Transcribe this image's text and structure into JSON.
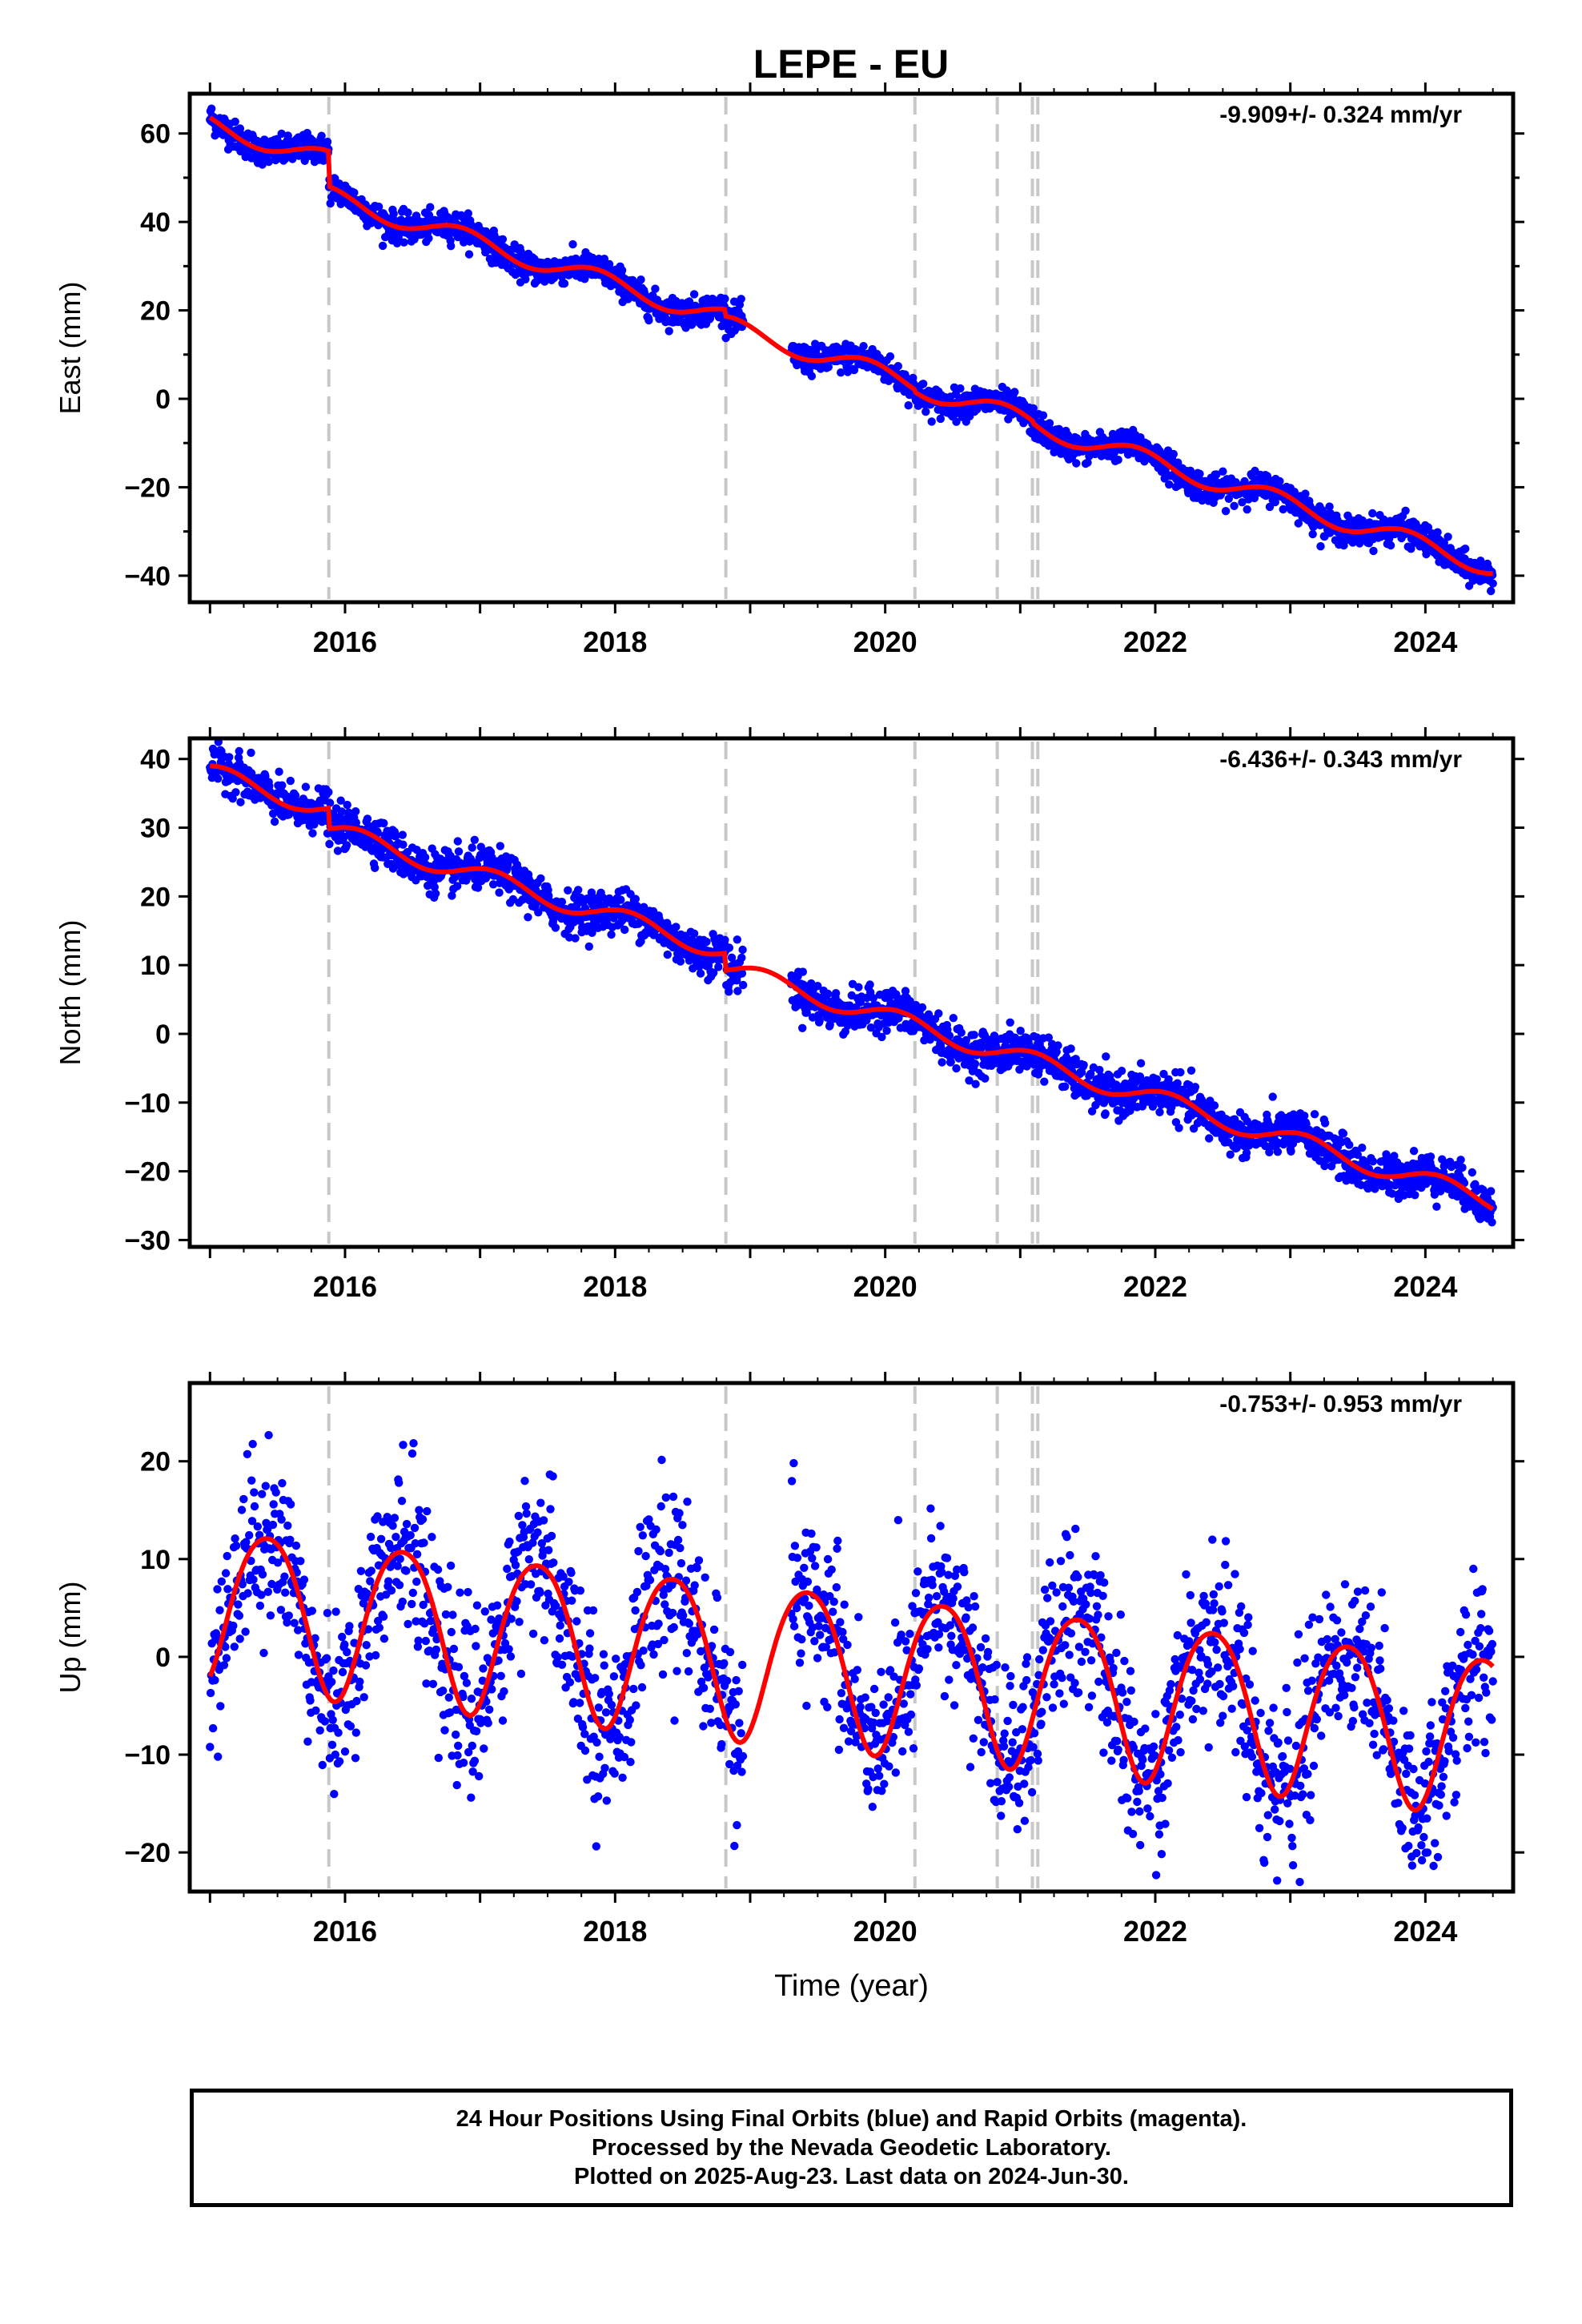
{
  "title": "LEPE - EU",
  "colors": {
    "points": "#0000ff",
    "fit": "#ff0000",
    "steps": "#c8c8c8",
    "axis": "#000000"
  },
  "chart_data": [
    {
      "type": "scatter",
      "panel": "east",
      "ylabel": "East (mm)",
      "xlabel": "",
      "xlim": [
        2014.85,
        2024.65
      ],
      "ylim": [
        -46,
        69
      ],
      "yticks": [
        -40,
        -20,
        0,
        20,
        40,
        60
      ],
      "xticks": [
        2016,
        2018,
        2020,
        2022,
        2024
      ],
      "velocity": "-9.909+/- 0.324 mm/yr",
      "velocity_mm_per_yr": -9.909,
      "amplitude": 2.2,
      "phase": 2.4,
      "noise": 1.6,
      "steps": [
        {
          "t": 2015.88,
          "d": -8
        },
        {
          "t": 2018.82,
          "d": -1.5
        },
        {
          "t": 2020.22,
          "d": -0.5
        },
        {
          "t": 2021.1,
          "d": -0.5
        }
      ],
      "fit_start": 63.6,
      "fit_end": -39.5,
      "grid": false,
      "series": [
        {
          "type": "scatter"
        },
        {
          "type": "line"
        }
      ]
    },
    {
      "type": "scatter",
      "panel": "north",
      "ylabel": "North (mm)",
      "xlabel": "",
      "xlim": [
        2014.85,
        2024.65
      ],
      "ylim": [
        -31,
        43
      ],
      "yticks": [
        -30,
        -20,
        -10,
        0,
        10,
        20,
        30,
        40
      ],
      "xticks": [
        2016,
        2018,
        2020,
        2022,
        2024
      ],
      "velocity": "-6.436+/- 0.343 mm/yr",
      "velocity_mm_per_yr": -6.436,
      "amplitude": 1.4,
      "phase": 0.9,
      "noise": 1.5,
      "steps": [
        {
          "t": 2015.88,
          "d": -3
        },
        {
          "t": 2018.82,
          "d": -2.5
        }
      ],
      "fit_start": 39.0,
      "fit_end": -25.5,
      "grid": false,
      "series": [
        {
          "type": "scatter"
        },
        {
          "type": "line"
        }
      ]
    },
    {
      "type": "scatter",
      "panel": "up",
      "ylabel": "Up (mm)",
      "xlabel": "Time (year)",
      "xlim": [
        2014.85,
        2024.65
      ],
      "ylim": [
        -24,
        28
      ],
      "yticks": [
        -20,
        -10,
        0,
        10,
        20
      ],
      "xticks": [
        2016,
        2018,
        2020,
        2022,
        2024
      ],
      "velocity": "-0.753+/- 0.953 mm/yr",
      "velocity_mm_per_yr": -0.753,
      "amplitude": 8.0,
      "phase": 5.2,
      "noise": 4.2,
      "steps": [],
      "fit_start": -1.5,
      "fit_end": -0.5,
      "grid": false,
      "series": [
        {
          "type": "scatter"
        },
        {
          "type": "line"
        }
      ]
    }
  ],
  "equipment_changes": [
    2015.88,
    2018.82,
    2020.22,
    2020.83,
    2021.09,
    2021.13
  ],
  "footer": {
    "line1": "24 Hour Positions Using Final Orbits (blue) and Rapid Orbits (magenta).",
    "line2": "Processed by the Nevada Geodetic Laboratory.",
    "line3": "Plotted on 2025-Aug-23. Last data on 2024-Jun-30."
  }
}
